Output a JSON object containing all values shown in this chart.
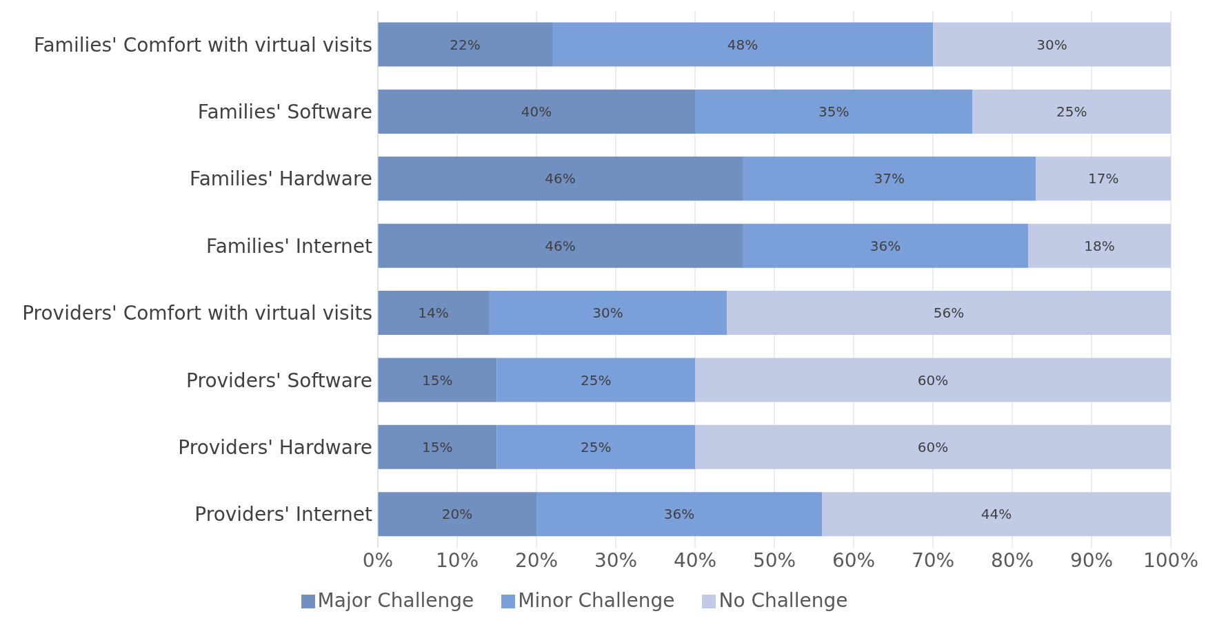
{
  "chart_data": {
    "type": "bar",
    "orientation": "horizontal",
    "stacked": true,
    "grid": "x",
    "legend": "bottom",
    "categories": [
      "Families' Comfort with virtual visits",
      "Families' Software",
      "Families' Hardware",
      "Families' Internet",
      "Providers' Comfort with virtual visits",
      "Providers' Software",
      "Providers' Hardware",
      "Providers' Internet"
    ],
    "series": [
      {
        "name": "Major Challenge",
        "color": "#7190c0",
        "values": [
          22,
          40,
          46,
          46,
          14,
          15,
          15,
          20
        ],
        "value_labels": [
          "22%",
          "40%",
          "46%",
          "46%",
          "14%",
          "15%",
          "15%",
          "20%"
        ]
      },
      {
        "name": "Minor Challenge",
        "color": "#7b9fd8",
        "values": [
          48,
          35,
          37,
          36,
          30,
          25,
          25,
          36
        ],
        "value_labels": [
          "48%",
          "35%",
          "37%",
          "36%",
          "30%",
          "25%",
          "25%",
          "36%"
        ]
      },
      {
        "name": "No Challenge",
        "color": "#c1cbe6",
        "values": [
          30,
          25,
          17,
          18,
          56,
          60,
          60,
          44
        ],
        "value_labels": [
          "30%",
          "25%",
          "17%",
          "18%",
          "56%",
          "60%",
          "60%",
          "44%"
        ]
      }
    ],
    "xlim": [
      0,
      100
    ],
    "xticks": [
      {
        "value": 0,
        "label": "0%"
      },
      {
        "value": 10,
        "label": "10%"
      },
      {
        "value": 20,
        "label": "20%"
      },
      {
        "value": 30,
        "label": "30%"
      },
      {
        "value": 40,
        "label": "40%"
      },
      {
        "value": 50,
        "label": "50%"
      },
      {
        "value": 60,
        "label": "60%"
      },
      {
        "value": 70,
        "label": "70%"
      },
      {
        "value": 80,
        "label": "80%"
      },
      {
        "value": 90,
        "label": "90%"
      },
      {
        "value": 100,
        "label": "100%"
      }
    ]
  }
}
